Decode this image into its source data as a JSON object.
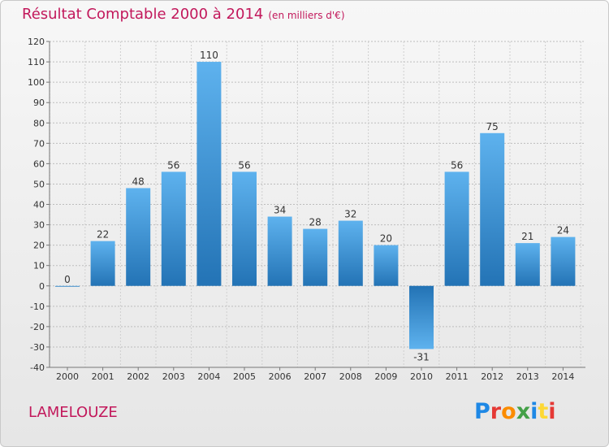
{
  "header": {
    "title": "Résultat Comptable 2000 à 2014",
    "subtitle": "(en milliers d'€)"
  },
  "footer": {
    "commune": "LAMELOUZE",
    "logo_text": "Proxiti"
  },
  "colors": {
    "title": "#c2185b",
    "bar_light": "#5eb2ee",
    "bar_dark": "#2373b5"
  },
  "chart_data": {
    "type": "bar",
    "title": "Résultat Comptable 2000 à 2014",
    "subtitle": "(en milliers d'€)",
    "categories": [
      "2000",
      "2001",
      "2002",
      "2003",
      "2004",
      "2005",
      "2006",
      "2007",
      "2008",
      "2009",
      "2010",
      "2011",
      "2012",
      "2013",
      "2014"
    ],
    "values": [
      0,
      22,
      48,
      56,
      110,
      56,
      34,
      28,
      32,
      20,
      -31,
      56,
      75,
      21,
      24
    ],
    "ylim": [
      -40,
      120
    ],
    "yticks": [
      -40,
      -30,
      -20,
      -10,
      0,
      10,
      20,
      30,
      40,
      50,
      60,
      70,
      80,
      90,
      100,
      110,
      120
    ],
    "grid": true,
    "data_labels": true,
    "legend": "none"
  }
}
